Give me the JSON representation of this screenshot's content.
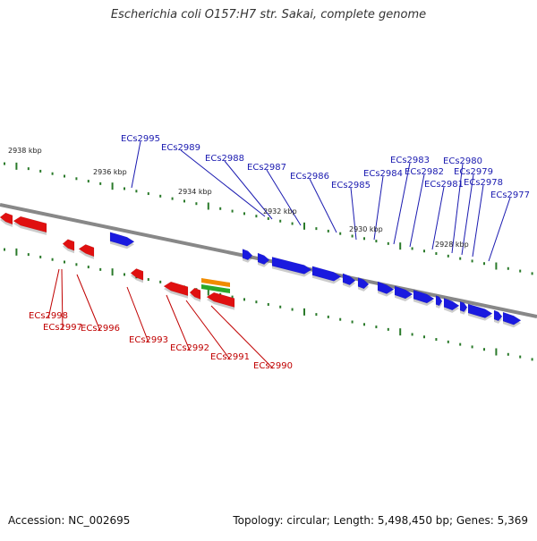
{
  "title": "Escherichia coli O157:H7 str. Sakai, complete genome",
  "footer": {
    "accession": "Accession: NC_002695",
    "summary": "Topology: circular; Length: 5,498,450 bp; Genes: 5,369"
  },
  "colors": {
    "forward_gene": "#1a1adf",
    "reverse_gene": "#e01010",
    "forward_label": "#1a1ab0",
    "reverse_label": "#c00000",
    "backbone": "#888888",
    "tick": "#2a7a2a",
    "feature_orange": "#f08c00",
    "feature_green": "#2aa82a"
  },
  "scale_labels": [
    {
      "text": "2938 kbp",
      "kbp": 2938
    },
    {
      "text": "2936 kbp",
      "kbp": 2936
    },
    {
      "text": "2934 kbp",
      "kbp": 2934
    },
    {
      "text": "2932 kbp",
      "kbp": 2932
    },
    {
      "text": "2930 kbp",
      "kbp": 2930
    },
    {
      "text": "2928 kbp",
      "kbp": 2928
    }
  ],
  "forward_genes": [
    {
      "label": "ECs2995"
    },
    {
      "label": "ECs2989"
    },
    {
      "label": "ECs2988"
    },
    {
      "label": "ECs2987"
    },
    {
      "label": "ECs2986"
    },
    {
      "label": "ECs2985"
    },
    {
      "label": "ECs2984"
    },
    {
      "label": "ECs2983"
    },
    {
      "label": "ECs2982"
    },
    {
      "label": "ECs2981"
    },
    {
      "label": "ECs2980"
    },
    {
      "label": "ECs2979"
    },
    {
      "label": "ECs2978"
    },
    {
      "label": "ECs2977"
    }
  ],
  "reverse_genes": [
    {
      "label": "ECs2998"
    },
    {
      "label": "ECs2997"
    },
    {
      "label": "ECs2996"
    },
    {
      "label": "ECs2993"
    },
    {
      "label": "ECs2992"
    },
    {
      "label": "ECs2991"
    },
    {
      "label": "ECs2990"
    }
  ]
}
